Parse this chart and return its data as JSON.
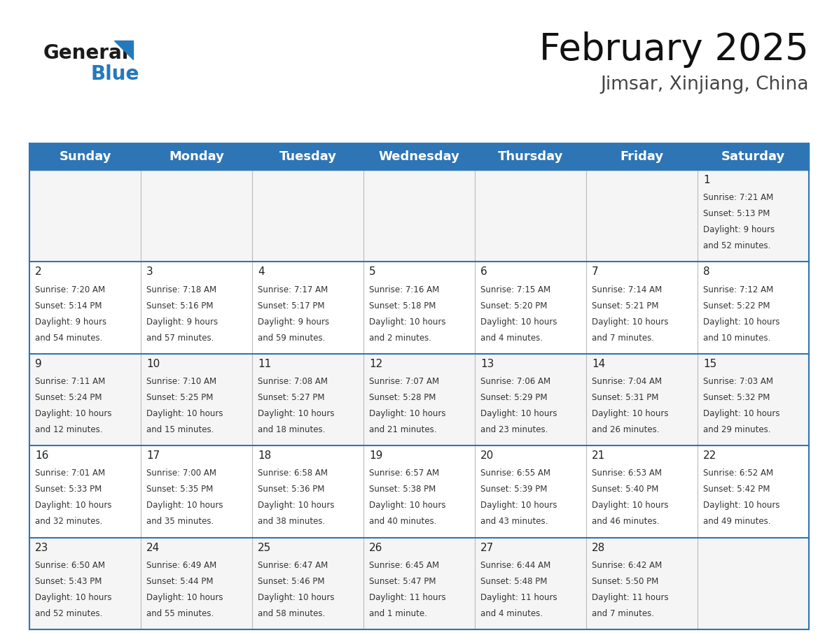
{
  "title": "February 2025",
  "subtitle": "Jimsar, Xinjiang, China",
  "header_color": "#2E75B6",
  "header_text_color": "#FFFFFF",
  "cell_bg_color": "#FFFFFF",
  "border_color": "#2E75B6",
  "cell_line_color": "#AAAAAA",
  "day_headers": [
    "Sunday",
    "Monday",
    "Tuesday",
    "Wednesday",
    "Thursday",
    "Friday",
    "Saturday"
  ],
  "days_data": [
    {
      "day": 1,
      "col": 6,
      "row": 0,
      "sunrise": "7:21 AM",
      "sunset": "5:13 PM",
      "daylight_h": "9 hours",
      "daylight_m": "and 52 minutes."
    },
    {
      "day": 2,
      "col": 0,
      "row": 1,
      "sunrise": "7:20 AM",
      "sunset": "5:14 PM",
      "daylight_h": "9 hours",
      "daylight_m": "and 54 minutes."
    },
    {
      "day": 3,
      "col": 1,
      "row": 1,
      "sunrise": "7:18 AM",
      "sunset": "5:16 PM",
      "daylight_h": "9 hours",
      "daylight_m": "and 57 minutes."
    },
    {
      "day": 4,
      "col": 2,
      "row": 1,
      "sunrise": "7:17 AM",
      "sunset": "5:17 PM",
      "daylight_h": "9 hours",
      "daylight_m": "and 59 minutes."
    },
    {
      "day": 5,
      "col": 3,
      "row": 1,
      "sunrise": "7:16 AM",
      "sunset": "5:18 PM",
      "daylight_h": "10 hours",
      "daylight_m": "and 2 minutes."
    },
    {
      "day": 6,
      "col": 4,
      "row": 1,
      "sunrise": "7:15 AM",
      "sunset": "5:20 PM",
      "daylight_h": "10 hours",
      "daylight_m": "and 4 minutes."
    },
    {
      "day": 7,
      "col": 5,
      "row": 1,
      "sunrise": "7:14 AM",
      "sunset": "5:21 PM",
      "daylight_h": "10 hours",
      "daylight_m": "and 7 minutes."
    },
    {
      "day": 8,
      "col": 6,
      "row": 1,
      "sunrise": "7:12 AM",
      "sunset": "5:22 PM",
      "daylight_h": "10 hours",
      "daylight_m": "and 10 minutes."
    },
    {
      "day": 9,
      "col": 0,
      "row": 2,
      "sunrise": "7:11 AM",
      "sunset": "5:24 PM",
      "daylight_h": "10 hours",
      "daylight_m": "and 12 minutes."
    },
    {
      "day": 10,
      "col": 1,
      "row": 2,
      "sunrise": "7:10 AM",
      "sunset": "5:25 PM",
      "daylight_h": "10 hours",
      "daylight_m": "and 15 minutes."
    },
    {
      "day": 11,
      "col": 2,
      "row": 2,
      "sunrise": "7:08 AM",
      "sunset": "5:27 PM",
      "daylight_h": "10 hours",
      "daylight_m": "and 18 minutes."
    },
    {
      "day": 12,
      "col": 3,
      "row": 2,
      "sunrise": "7:07 AM",
      "sunset": "5:28 PM",
      "daylight_h": "10 hours",
      "daylight_m": "and 21 minutes."
    },
    {
      "day": 13,
      "col": 4,
      "row": 2,
      "sunrise": "7:06 AM",
      "sunset": "5:29 PM",
      "daylight_h": "10 hours",
      "daylight_m": "and 23 minutes."
    },
    {
      "day": 14,
      "col": 5,
      "row": 2,
      "sunrise": "7:04 AM",
      "sunset": "5:31 PM",
      "daylight_h": "10 hours",
      "daylight_m": "and 26 minutes."
    },
    {
      "day": 15,
      "col": 6,
      "row": 2,
      "sunrise": "7:03 AM",
      "sunset": "5:32 PM",
      "daylight_h": "10 hours",
      "daylight_m": "and 29 minutes."
    },
    {
      "day": 16,
      "col": 0,
      "row": 3,
      "sunrise": "7:01 AM",
      "sunset": "5:33 PM",
      "daylight_h": "10 hours",
      "daylight_m": "and 32 minutes."
    },
    {
      "day": 17,
      "col": 1,
      "row": 3,
      "sunrise": "7:00 AM",
      "sunset": "5:35 PM",
      "daylight_h": "10 hours",
      "daylight_m": "and 35 minutes."
    },
    {
      "day": 18,
      "col": 2,
      "row": 3,
      "sunrise": "6:58 AM",
      "sunset": "5:36 PM",
      "daylight_h": "10 hours",
      "daylight_m": "and 38 minutes."
    },
    {
      "day": 19,
      "col": 3,
      "row": 3,
      "sunrise": "6:57 AM",
      "sunset": "5:38 PM",
      "daylight_h": "10 hours",
      "daylight_m": "and 40 minutes."
    },
    {
      "day": 20,
      "col": 4,
      "row": 3,
      "sunrise": "6:55 AM",
      "sunset": "5:39 PM",
      "daylight_h": "10 hours",
      "daylight_m": "and 43 minutes."
    },
    {
      "day": 21,
      "col": 5,
      "row": 3,
      "sunrise": "6:53 AM",
      "sunset": "5:40 PM",
      "daylight_h": "10 hours",
      "daylight_m": "and 46 minutes."
    },
    {
      "day": 22,
      "col": 6,
      "row": 3,
      "sunrise": "6:52 AM",
      "sunset": "5:42 PM",
      "daylight_h": "10 hours",
      "daylight_m": "and 49 minutes."
    },
    {
      "day": 23,
      "col": 0,
      "row": 4,
      "sunrise": "6:50 AM",
      "sunset": "5:43 PM",
      "daylight_h": "10 hours",
      "daylight_m": "and 52 minutes."
    },
    {
      "day": 24,
      "col": 1,
      "row": 4,
      "sunrise": "6:49 AM",
      "sunset": "5:44 PM",
      "daylight_h": "10 hours",
      "daylight_m": "and 55 minutes."
    },
    {
      "day": 25,
      "col": 2,
      "row": 4,
      "sunrise": "6:47 AM",
      "sunset": "5:46 PM",
      "daylight_h": "10 hours",
      "daylight_m": "and 58 minutes."
    },
    {
      "day": 26,
      "col": 3,
      "row": 4,
      "sunrise": "6:45 AM",
      "sunset": "5:47 PM",
      "daylight_h": "11 hours",
      "daylight_m": "and 1 minute."
    },
    {
      "day": 27,
      "col": 4,
      "row": 4,
      "sunrise": "6:44 AM",
      "sunset": "5:48 PM",
      "daylight_h": "11 hours",
      "daylight_m": "and 4 minutes."
    },
    {
      "day": 28,
      "col": 5,
      "row": 4,
      "sunrise": "6:42 AM",
      "sunset": "5:50 PM",
      "daylight_h": "11 hours",
      "daylight_m": "and 7 minutes."
    }
  ],
  "num_rows": 5,
  "num_cols": 7,
  "logo_color_general": "#1a1a1a",
  "logo_color_blue": "#2479BC",
  "title_fontsize": 38,
  "subtitle_fontsize": 19,
  "header_fontsize": 13,
  "day_num_fontsize": 11,
  "cell_text_fontsize": 8.5,
  "background_color": "#FFFFFF"
}
